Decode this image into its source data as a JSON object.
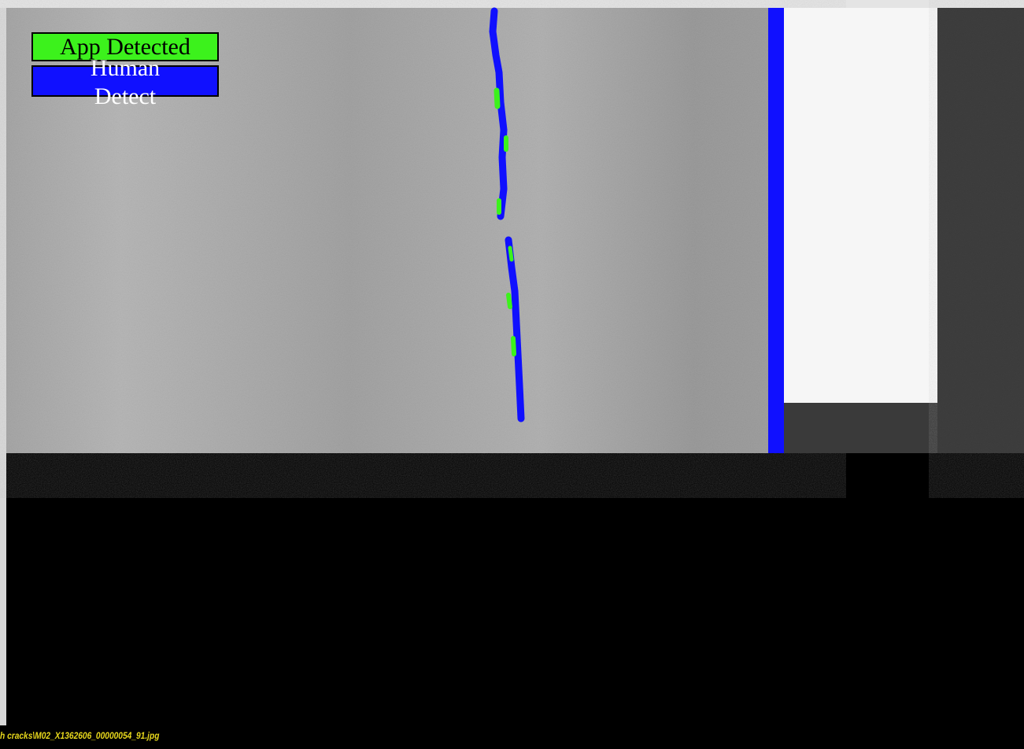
{
  "legend": {
    "items": [
      {
        "label": "App Detected"
      },
      {
        "label": "Human Detect"
      }
    ]
  },
  "status": {
    "file_path": "h cracks\\M02_X1362606_00000054_91.jpg"
  }
}
